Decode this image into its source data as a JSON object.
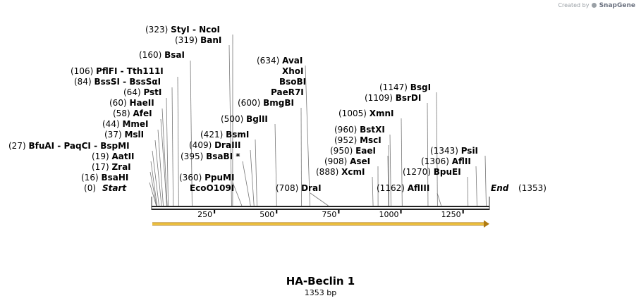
{
  "watermark": {
    "prefix": "Created by",
    "brand": "SnapGene"
  },
  "map": {
    "name": "HA-Beclin 1",
    "length_label": "1353 bp",
    "length": 1353,
    "start_label": "Start",
    "end_label": "End",
    "start_pos": 0,
    "end_pos": 1353,
    "ticks": [
      250,
      500,
      750,
      1000,
      1250
    ],
    "feature_color": "#f2c744",
    "sites": [
      {
        "pos": 323,
        "names": [
          "StyI",
          "NcoI"
        ]
      },
      {
        "pos": 319,
        "names": [
          "BanI"
        ]
      },
      {
        "pos": 160,
        "names": [
          "BsaI"
        ]
      },
      {
        "pos": 106,
        "names": [
          "PflFI",
          "Tth111I"
        ]
      },
      {
        "pos": 84,
        "names": [
          "BssSI",
          "BssSαI"
        ]
      },
      {
        "pos": 64,
        "names": [
          "PstI"
        ]
      },
      {
        "pos": 60,
        "names": [
          "HaeII"
        ]
      },
      {
        "pos": 58,
        "names": [
          "AfeI"
        ]
      },
      {
        "pos": 44,
        "names": [
          "MmeI"
        ]
      },
      {
        "pos": 37,
        "names": [
          "MslI"
        ]
      },
      {
        "pos": 27,
        "names": [
          "BfuAI",
          "PaqCI",
          "BspMI"
        ]
      },
      {
        "pos": 19,
        "names": [
          "AatII"
        ]
      },
      {
        "pos": 17,
        "names": [
          "ZraI"
        ]
      },
      {
        "pos": 16,
        "names": [
          "BsaHI"
        ]
      },
      {
        "pos": 500,
        "names": [
          "BglII"
        ]
      },
      {
        "pos": 421,
        "names": [
          "BsmI"
        ]
      },
      {
        "pos": 409,
        "names": [
          "DraIII"
        ]
      },
      {
        "pos": 395,
        "names": [
          "BsaBI *"
        ]
      },
      {
        "pos": 360,
        "names": [
          "PpuMI"
        ]
      },
      {
        "pos": null,
        "names": [
          "EcoO109I"
        ]
      },
      {
        "pos": 634,
        "names": [
          "AvaI"
        ]
      },
      {
        "pos": null,
        "names": [
          "XhoI"
        ]
      },
      {
        "pos": null,
        "names": [
          "BsoBI"
        ]
      },
      {
        "pos": null,
        "names": [
          "PaeR7I"
        ]
      },
      {
        "pos": 600,
        "names": [
          "BmgBI"
        ]
      },
      {
        "pos": 708,
        "names": [
          "DraI"
        ]
      },
      {
        "pos": 1147,
        "names": [
          "BsgI"
        ]
      },
      {
        "pos": 1109,
        "names": [
          "BsrDI"
        ]
      },
      {
        "pos": 1005,
        "names": [
          "XmnI"
        ]
      },
      {
        "pos": 960,
        "names": [
          "BstXI"
        ]
      },
      {
        "pos": 952,
        "names": [
          "MscI"
        ]
      },
      {
        "pos": 950,
        "names": [
          "EaeI"
        ]
      },
      {
        "pos": 908,
        "names": [
          "AseI"
        ]
      },
      {
        "pos": 888,
        "names": [
          "XcmI"
        ]
      },
      {
        "pos": 1343,
        "names": [
          "PsiI"
        ]
      },
      {
        "pos": 1306,
        "names": [
          "AflII"
        ]
      },
      {
        "pos": 1270,
        "names": [
          "BpuEI"
        ]
      },
      {
        "pos": 1162,
        "names": [
          "AflIII"
        ]
      }
    ]
  }
}
